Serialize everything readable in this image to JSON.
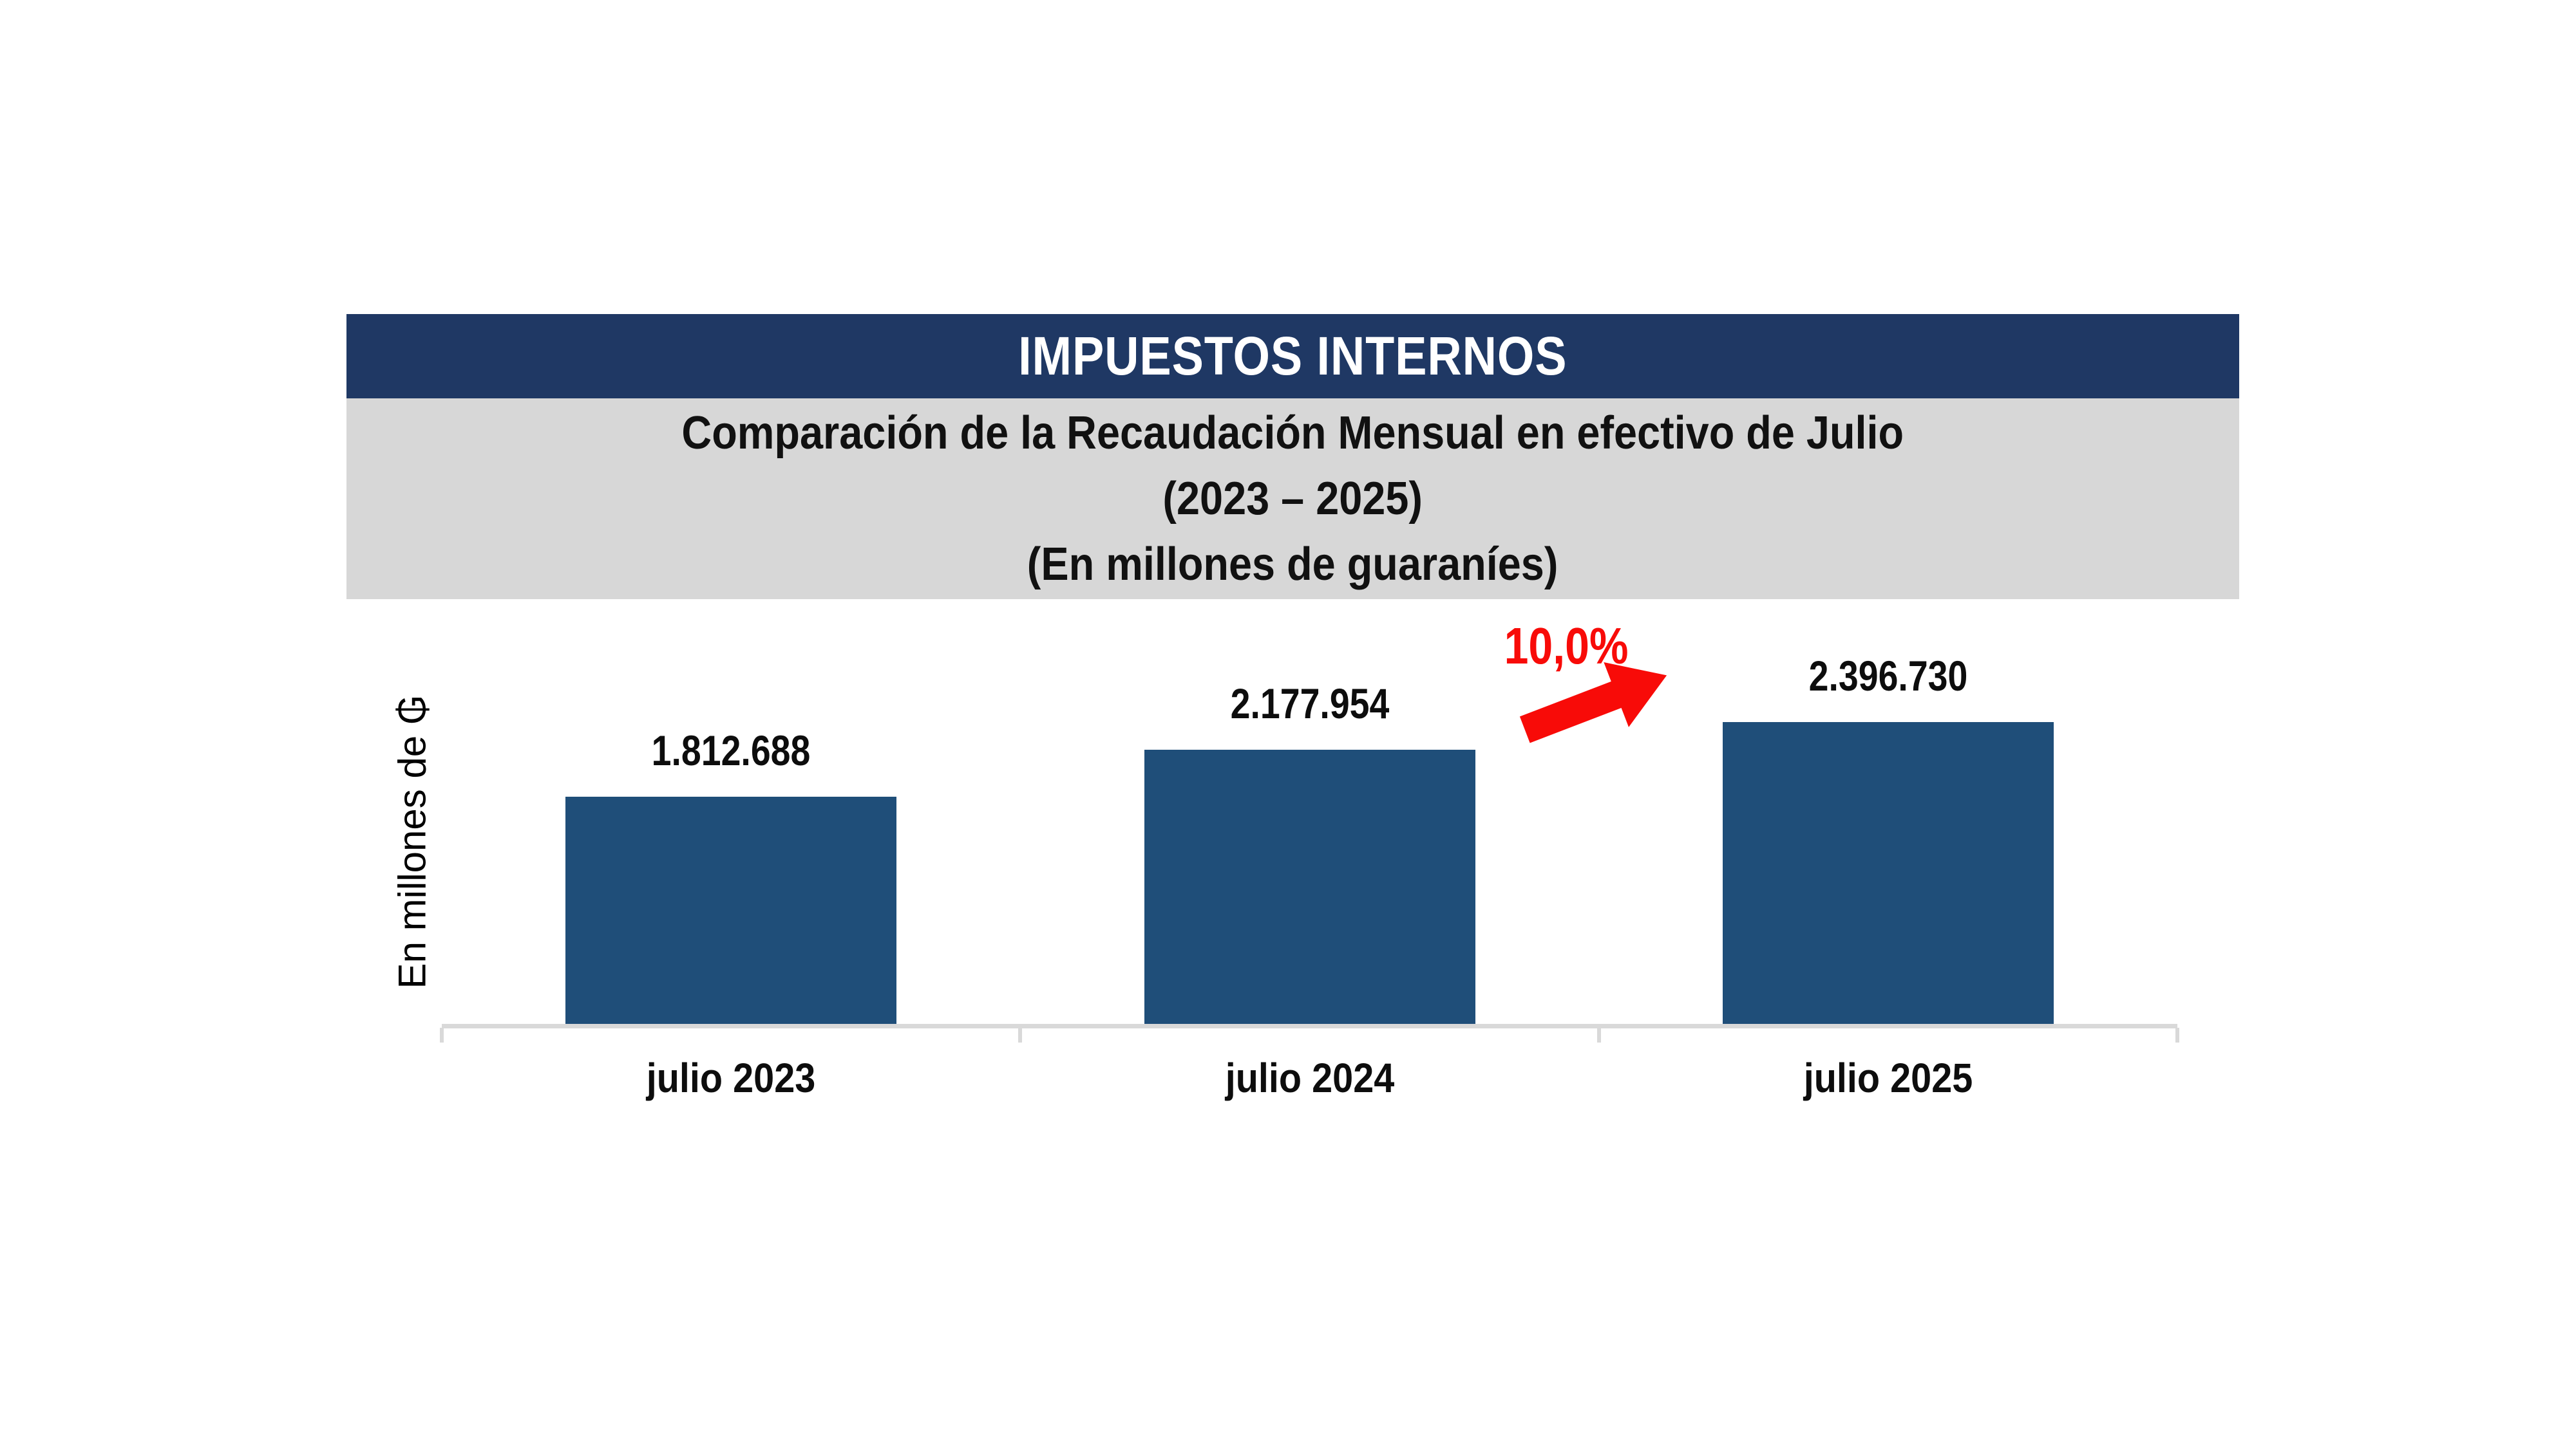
{
  "banner": {
    "title": "IMPUESTOS INTERNOS"
  },
  "subtitle": {
    "line1": "Comparación de la Recaudación Mensual en efectivo de Julio",
    "line2": "(2023 – 2025)",
    "line3": "(En millones de guaraníes)"
  },
  "y_axis_label": "En millones de ₲",
  "growth_annotation": {
    "label": "10,0%",
    "icon": "up-right-arrow-icon"
  },
  "colors": {
    "banner_bg": "#1F3864",
    "banner_text": "#FFFFFF",
    "subtitle_bg": "#D7D7D7",
    "bar": "#1F4E79",
    "axis": "#D9D9D9",
    "annotation_red": "#F80B08",
    "text": "#0D0D0D"
  },
  "chart_data": {
    "type": "bar",
    "title": "IMPUESTOS INTERNOS",
    "subtitle_lines": [
      "Comparación de la Recaudación Mensual en efectivo de Julio",
      "(2023 – 2025)",
      "(En millones de guaraníes)"
    ],
    "categories": [
      "julio 2023",
      "julio 2024",
      "julio 2025"
    ],
    "values": [
      1812688,
      2177954,
      2396730
    ],
    "value_labels": [
      "1.812.688",
      "2.177.954",
      "2.396.730"
    ],
    "ylabel": "En millones de ₲",
    "baseline": 0,
    "grid": false,
    "legend": false,
    "annotation": {
      "text": "10,0%",
      "between": [
        "julio 2024",
        "julio 2025"
      ]
    }
  }
}
